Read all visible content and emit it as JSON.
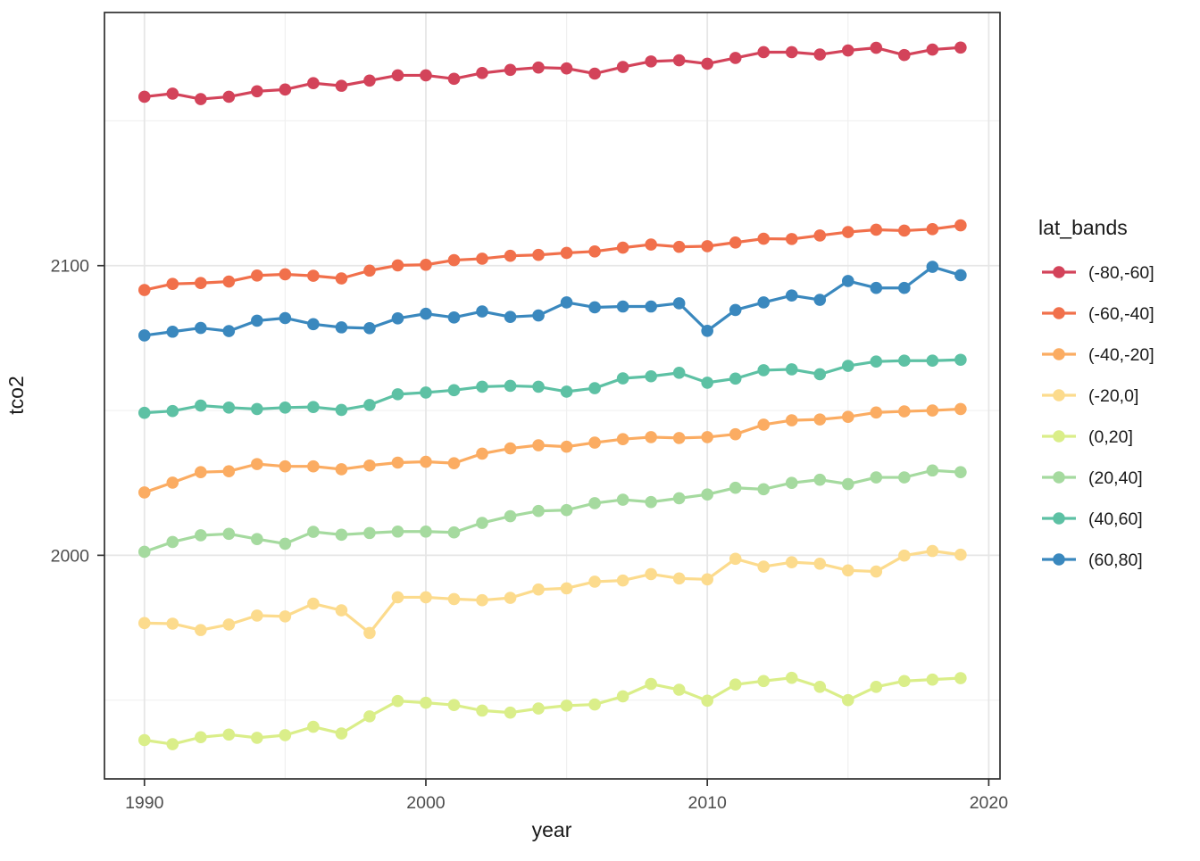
{
  "chart_data": {
    "type": "line",
    "title": "",
    "xlabel": "year",
    "ylabel": "tco2",
    "legend_title": "lat_bands",
    "legend_position": "right",
    "grid": true,
    "x": [
      1990,
      1991,
      1992,
      1993,
      1994,
      1995,
      1996,
      1997,
      1998,
      1999,
      2000,
      2001,
      2002,
      2003,
      2004,
      2005,
      2006,
      2007,
      2008,
      2009,
      2010,
      2011,
      2012,
      2013,
      2014,
      2015,
      2016,
      2017,
      2018,
      2019
    ],
    "xlim": [
      1988.58,
      2020.4
    ],
    "ylim": [
      1922.8,
      2187.4
    ],
    "x_major_ticks": [
      1990,
      2000,
      2010,
      2020
    ],
    "x_minor_ticks": [
      1995,
      2005,
      2015
    ],
    "y_major_ticks": [
      2000,
      2100
    ],
    "y_minor_ticks": [
      1950,
      2050,
      2150
    ],
    "series": [
      {
        "name": "(-80,-60]",
        "color": "#d3435a",
        "values": [
          2158.3,
          2159.4,
          2157.5,
          2158.3,
          2160.2,
          2160.8,
          2163.0,
          2162.1,
          2163.9,
          2165.7,
          2165.7,
          2164.5,
          2166.5,
          2167.6,
          2168.4,
          2168.1,
          2166.3,
          2168.6,
          2170.5,
          2170.9,
          2169.7,
          2171.7,
          2173.7,
          2173.7,
          2172.9,
          2174.3,
          2175.2,
          2172.7,
          2174.6,
          2175.3
        ]
      },
      {
        "name": "(-60,-40]",
        "color": "#f1704b",
        "values": [
          2091.6,
          2093.7,
          2094.0,
          2094.5,
          2096.6,
          2097.0,
          2096.5,
          2095.6,
          2098.3,
          2100.1,
          2100.3,
          2101.9,
          2102.4,
          2103.4,
          2103.7,
          2104.4,
          2104.9,
          2106.2,
          2107.3,
          2106.5,
          2106.7,
          2108.0,
          2109.3,
          2109.2,
          2110.4,
          2111.6,
          2112.4,
          2112.1,
          2112.6,
          2113.9
        ]
      },
      {
        "name": "(-40,-20]",
        "color": "#fbac62",
        "values": [
          2021.7,
          2025.1,
          2028.7,
          2029.0,
          2031.5,
          2030.7,
          2030.7,
          2029.7,
          2031.0,
          2032.0,
          2032.3,
          2031.8,
          2035.1,
          2036.9,
          2038.0,
          2037.5,
          2038.9,
          2040.1,
          2040.8,
          2040.5,
          2040.8,
          2041.8,
          2045.1,
          2046.6,
          2046.9,
          2047.8,
          2049.3,
          2049.7,
          2050.0,
          2050.5
        ]
      },
      {
        "name": "(-20,0]",
        "color": "#fcdb8d",
        "values": [
          1976.6,
          1976.4,
          1974.2,
          1976.1,
          1979.2,
          1978.9,
          1983.3,
          1981.0,
          1973.2,
          1985.5,
          1985.5,
          1984.9,
          1984.5,
          1985.3,
          1988.2,
          1988.6,
          1990.9,
          1991.3,
          1993.5,
          1992.0,
          1991.7,
          1998.8,
          1996.1,
          1997.6,
          1997.1,
          1994.8,
          1994.4,
          1999.9,
          2001.5,
          2000.2
        ]
      },
      {
        "name": "(0,20]",
        "color": "#daee89",
        "values": [
          1936.2,
          1934.8,
          1937.2,
          1938.1,
          1937.0,
          1937.9,
          1940.8,
          1938.5,
          1944.4,
          1949.7,
          1949.1,
          1948.3,
          1946.4,
          1945.7,
          1947.1,
          1948.1,
          1948.5,
          1951.3,
          1955.6,
          1953.6,
          1949.8,
          1955.4,
          1956.6,
          1957.7,
          1954.6,
          1950.0,
          1954.6,
          1956.6,
          1957.1,
          1957.6
        ]
      },
      {
        "name": "(20,40]",
        "color": "#a5da9f",
        "values": [
          2001.2,
          2004.6,
          2006.9,
          2007.4,
          2005.6,
          2004.0,
          2008.1,
          2007.1,
          2007.7,
          2008.2,
          2008.2,
          2007.9,
          2011.2,
          2013.5,
          2015.3,
          2015.6,
          2018.0,
          2019.2,
          2018.4,
          2019.7,
          2021.0,
          2023.3,
          2022.8,
          2025.0,
          2026.1,
          2024.6,
          2026.9,
          2026.9,
          2029.3,
          2028.7
        ]
      },
      {
        "name": "(40,60]",
        "color": "#5dc1a4",
        "values": [
          2049.2,
          2049.8,
          2051.7,
          2051.0,
          2050.5,
          2051.0,
          2051.2,
          2050.2,
          2051.9,
          2055.6,
          2056.2,
          2057.0,
          2058.2,
          2058.5,
          2058.2,
          2056.5,
          2057.7,
          2061.1,
          2061.8,
          2063.0,
          2059.6,
          2061.0,
          2063.9,
          2064.2,
          2062.5,
          2065.4,
          2066.9,
          2067.2,
          2067.2,
          2067.5
        ]
      },
      {
        "name": "(60,80]",
        "color": "#3a88be",
        "values": [
          2075.9,
          2077.2,
          2078.5,
          2077.4,
          2081.0,
          2081.9,
          2079.8,
          2078.7,
          2078.4,
          2081.8,
          2083.4,
          2082.1,
          2084.2,
          2082.3,
          2082.8,
          2087.3,
          2085.6,
          2085.9,
          2085.9,
          2087.0,
          2077.5,
          2084.7,
          2087.3,
          2089.7,
          2088.2,
          2094.7,
          2092.3,
          2092.3,
          2099.6,
          2096.7
        ]
      }
    ],
    "style": {
      "panel_border_color": "#2f2f2f",
      "grid_major_color": "#e6e6e6",
      "grid_minor_color": "#f0f0f0",
      "tick_color": "#333333",
      "tick_label_color": "#4d4d4d",
      "line_width": 3.2,
      "point_radius": 6.8
    }
  }
}
